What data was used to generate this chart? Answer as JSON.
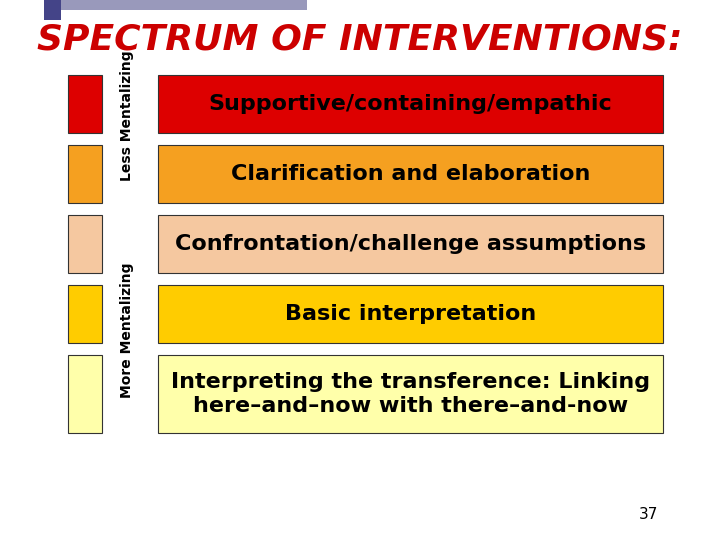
{
  "title": "SPECTRUM OF INTERVENTIONS:",
  "title_color": "#CC0000",
  "title_fontsize": 26,
  "background_color": "#FFFFFF",
  "page_number": "37",
  "bars": [
    {
      "label": "Supportive/containing/empathic",
      "color": "#DD0000",
      "text_color": "#000000",
      "fontsize": 16
    },
    {
      "label": "Clarification and elaboration",
      "color": "#F5A020",
      "text_color": "#000000",
      "fontsize": 16
    },
    {
      "label": "Confrontation/challenge assumptions",
      "color": "#F5C8A0",
      "text_color": "#000000",
      "fontsize": 16
    },
    {
      "label": "Basic interpretation",
      "color": "#FFCC00",
      "text_color": "#000000",
      "fontsize": 16
    },
    {
      "label": "Interpreting the transference: Linking\nhere–and–now with there–and-now",
      "color": "#FFFFAA",
      "text_color": "#000000",
      "fontsize": 16
    }
  ],
  "side_colors": [
    "#DD0000",
    "#F5A020",
    "#F5C8A0",
    "#FFCC00",
    "#FFFFAA"
  ],
  "less_mentalizing_label": "Less Mentalizing",
  "more_mentalizing_label": "More Mentalizing"
}
